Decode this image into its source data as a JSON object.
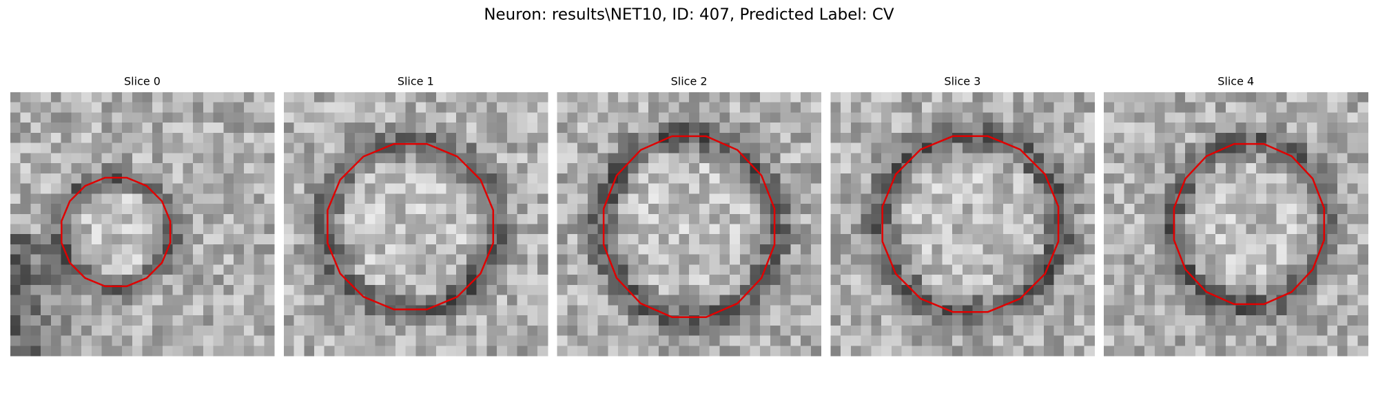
{
  "title": "Neuron: results\\NET10, ID: 407, Predicted Label: CV",
  "panels": [
    {
      "title": "Slice 0"
    },
    {
      "title": "Slice 1"
    },
    {
      "title": "Slice 2"
    },
    {
      "title": "Slice 3"
    },
    {
      "title": "Slice 4"
    }
  ]
}
